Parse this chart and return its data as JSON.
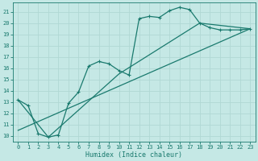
{
  "title": "",
  "xlabel": "Humidex (Indice chaleur)",
  "bg_color": "#c5e8e5",
  "grid_color": "#b0d8d4",
  "line_color": "#1a7a6e",
  "xlim": [
    -0.5,
    23.5
  ],
  "ylim": [
    9.5,
    21.8
  ],
  "yticks": [
    10,
    11,
    12,
    13,
    14,
    15,
    16,
    17,
    18,
    19,
    20,
    21
  ],
  "xticks": [
    0,
    1,
    2,
    3,
    4,
    5,
    6,
    7,
    8,
    9,
    10,
    11,
    12,
    13,
    14,
    15,
    16,
    17,
    18,
    19,
    20,
    21,
    22,
    23
  ],
  "curve1_x": [
    0,
    1,
    2,
    3,
    4,
    5,
    6,
    7,
    8,
    9,
    10,
    11,
    12,
    13,
    14,
    15,
    16,
    17,
    18,
    19,
    20,
    21,
    22,
    23
  ],
  "curve1_y": [
    13.2,
    12.7,
    10.2,
    9.9,
    10.1,
    12.9,
    13.9,
    16.2,
    16.6,
    16.4,
    15.8,
    15.4,
    20.4,
    20.6,
    20.5,
    21.1,
    21.4,
    21.2,
    20.0,
    19.6,
    19.4,
    19.4,
    19.4,
    19.5
  ],
  "curve2_x": [
    0,
    3,
    10,
    18,
    23
  ],
  "curve2_y": [
    13.2,
    9.9,
    15.5,
    20.0,
    19.5
  ],
  "curve3_x": [
    0,
    23
  ],
  "curve3_y": [
    10.5,
    19.5
  ],
  "tick_fontsize": 5,
  "xlabel_fontsize": 6,
  "marker_size": 3,
  "linewidth": 0.9
}
